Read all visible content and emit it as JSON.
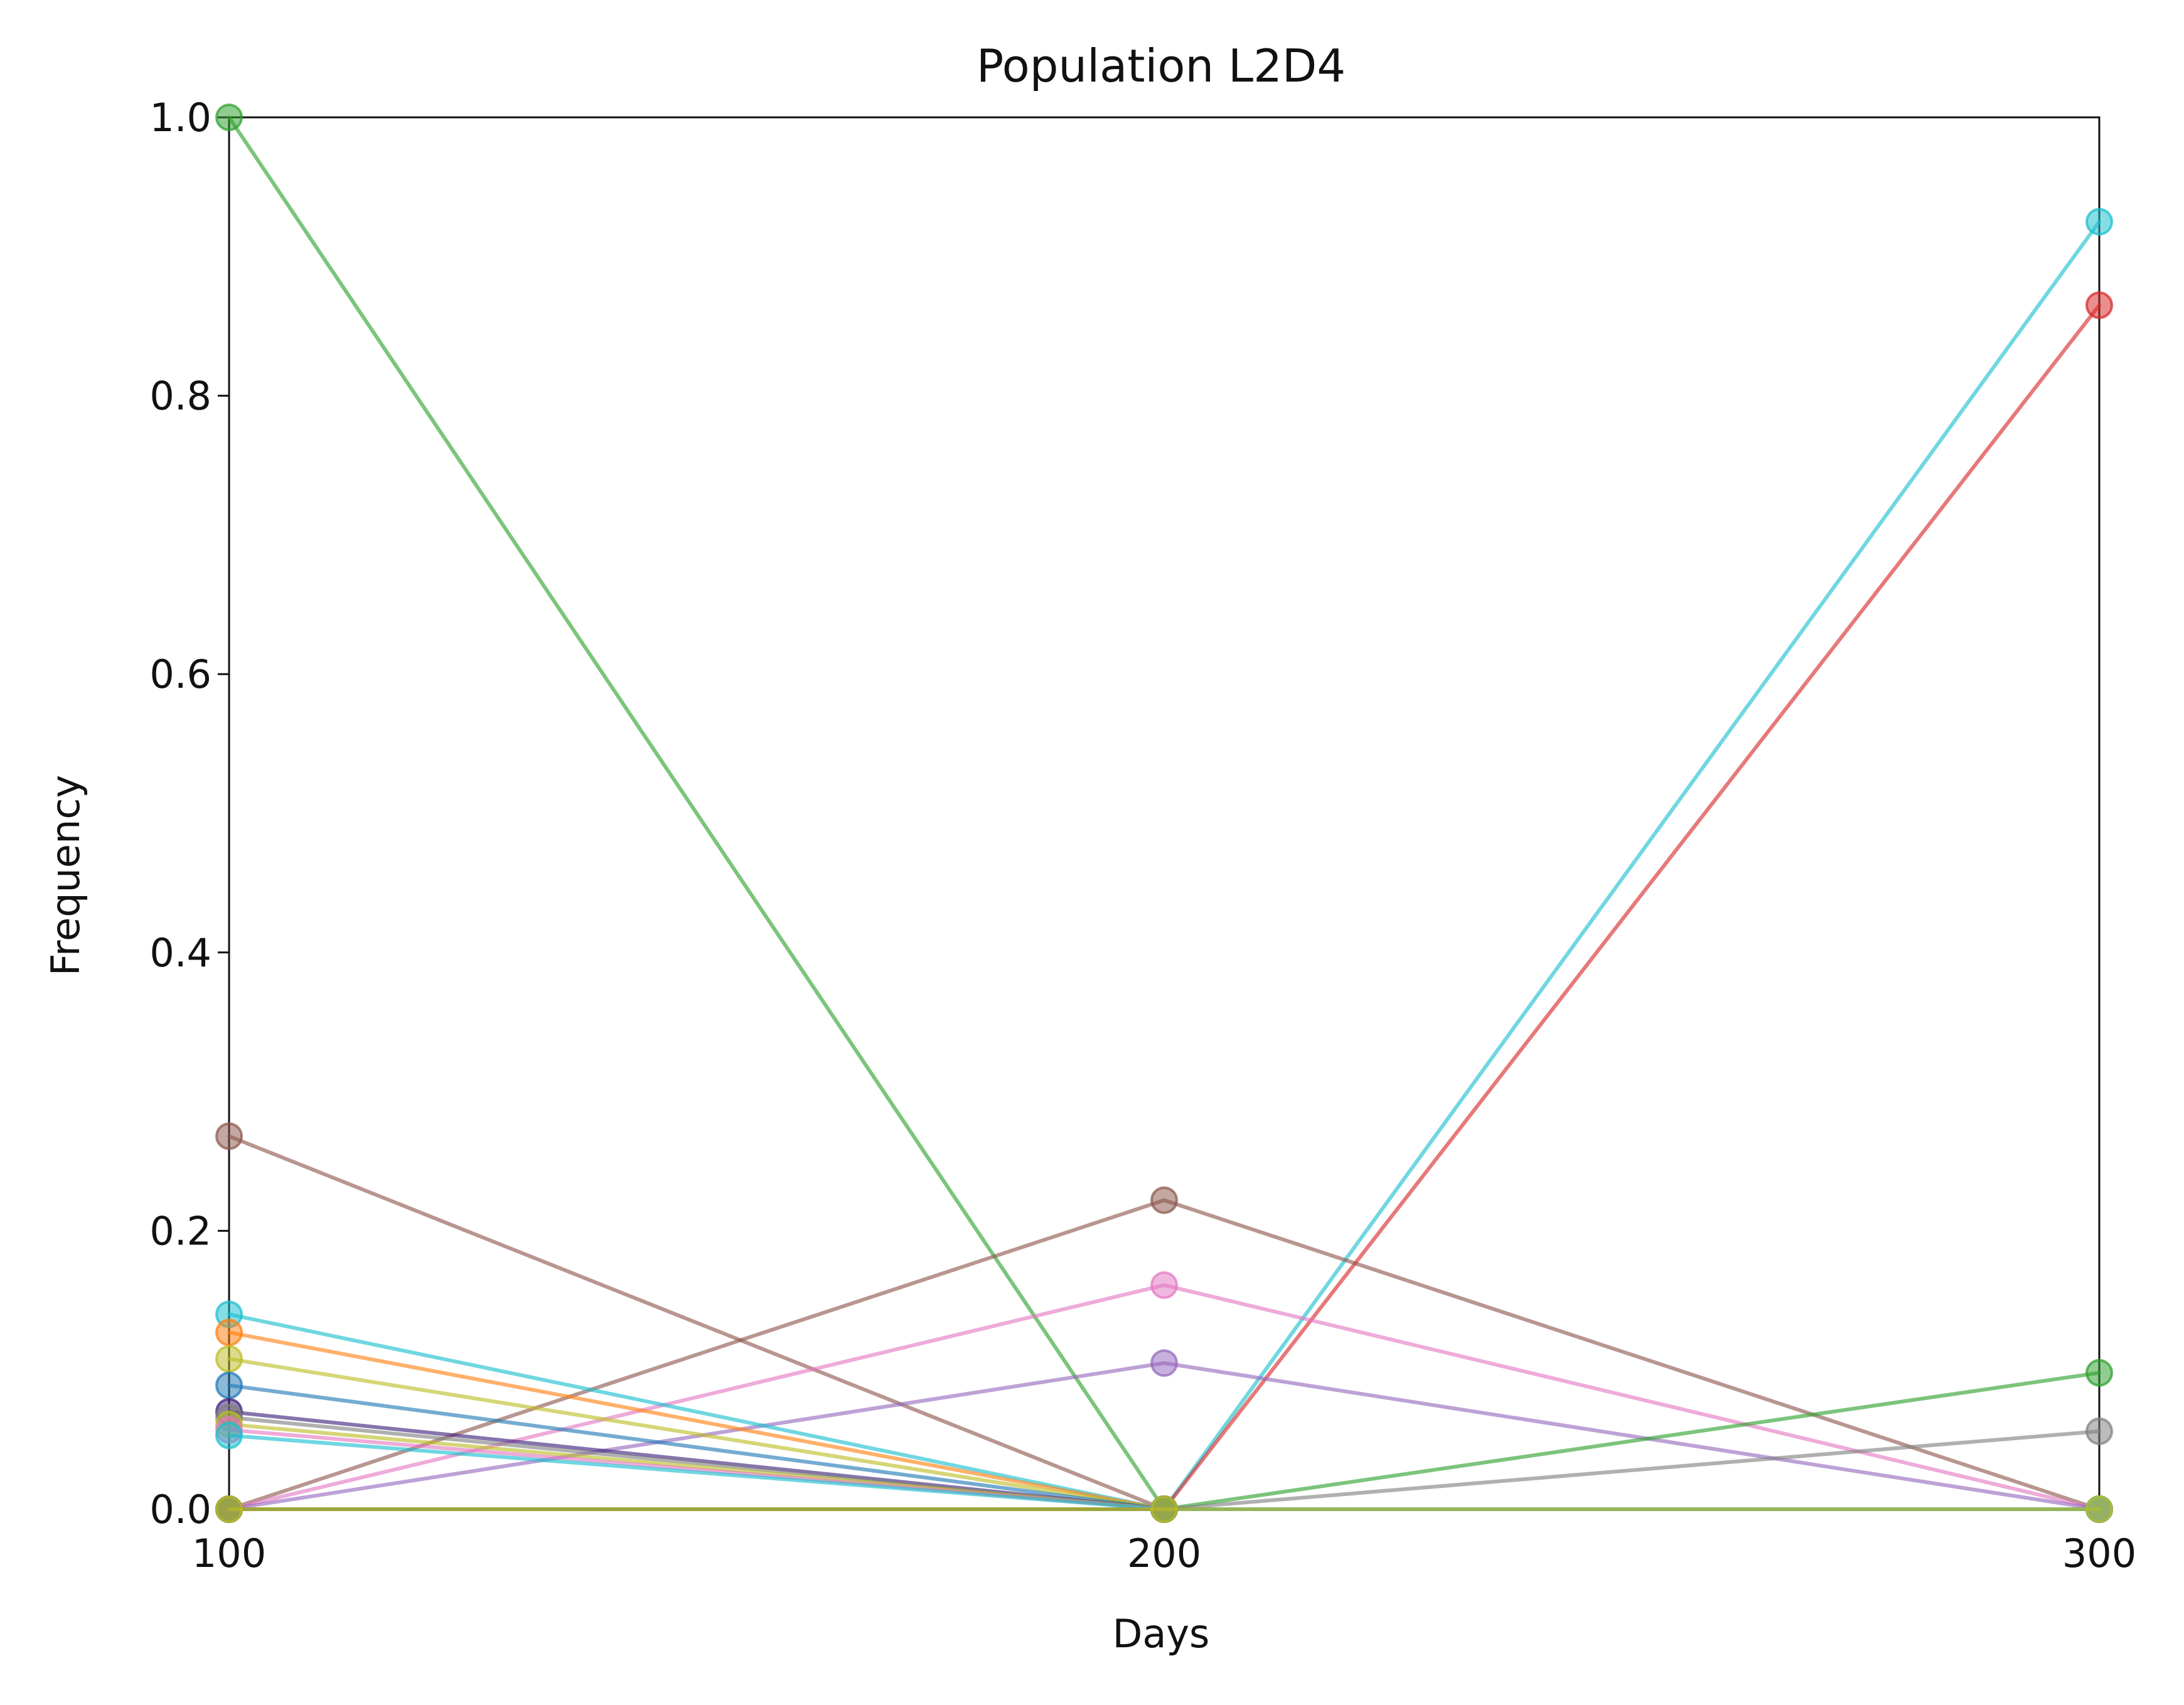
{
  "chart_data": {
    "type": "line",
    "title": "Population L2D4",
    "xlabel": "Days",
    "ylabel": "Frequency",
    "x": [
      100,
      200,
      300
    ],
    "xlim": [
      100,
      300
    ],
    "ylim": [
      0,
      1
    ],
    "xticks": [
      "100",
      "200",
      "300"
    ],
    "yticks": [
      "0.0",
      "0.2",
      "0.4",
      "0.6",
      "0.8",
      "1.0"
    ],
    "grid": false,
    "legend": false,
    "series": [
      {
        "values": [
          1.0,
          0.0,
          0.0
        ],
        "color": "#2ca02c"
      },
      {
        "values": [
          0.0,
          0.0,
          0.925
        ],
        "color": "#17becf"
      },
      {
        "values": [
          0.0,
          0.0,
          0.865
        ],
        "color": "#d62728"
      },
      {
        "values": [
          0.268,
          0.0,
          0.0
        ],
        "color": "#8c564b"
      },
      {
        "values": [
          0.0,
          0.222,
          0.0
        ],
        "color": "#8c564b"
      },
      {
        "values": [
          0.0,
          0.161,
          0.0
        ],
        "color": "#e377c2"
      },
      {
        "values": [
          0.0,
          0.105,
          0.0
        ],
        "color": "#9467bd"
      },
      {
        "values": [
          0.14,
          0.0,
          0.0
        ],
        "color": "#17becf"
      },
      {
        "values": [
          0.127,
          0.0,
          0.0
        ],
        "color": "#ff7f0e"
      },
      {
        "values": [
          0.108,
          0.0,
          0.0
        ],
        "color": "#bcbd22"
      },
      {
        "values": [
          0.089,
          0.0,
          0.0
        ],
        "color": "#1f77b4"
      },
      {
        "values": [
          0.07,
          0.0,
          0.0
        ],
        "color": "#3b1f7a"
      },
      {
        "values": [
          0.066,
          0.0,
          0.0
        ],
        "color": "#7f7f7f"
      },
      {
        "values": [
          0.061,
          0.0,
          0.0
        ],
        "color": "#bcbd22"
      },
      {
        "values": [
          0.057,
          0.0,
          0.0
        ],
        "color": "#e377c2"
      },
      {
        "values": [
          0.053,
          0.0,
          0.0
        ],
        "color": "#17becf"
      },
      {
        "values": [
          0.0,
          0.0,
          0.098
        ],
        "color": "#2ca02c"
      },
      {
        "values": [
          0.0,
          0.0,
          0.056
        ],
        "color": "#7f7f7f"
      },
      {
        "values": [
          0.0,
          0.0,
          0.0
        ],
        "color": "#bcbd22"
      }
    ]
  }
}
